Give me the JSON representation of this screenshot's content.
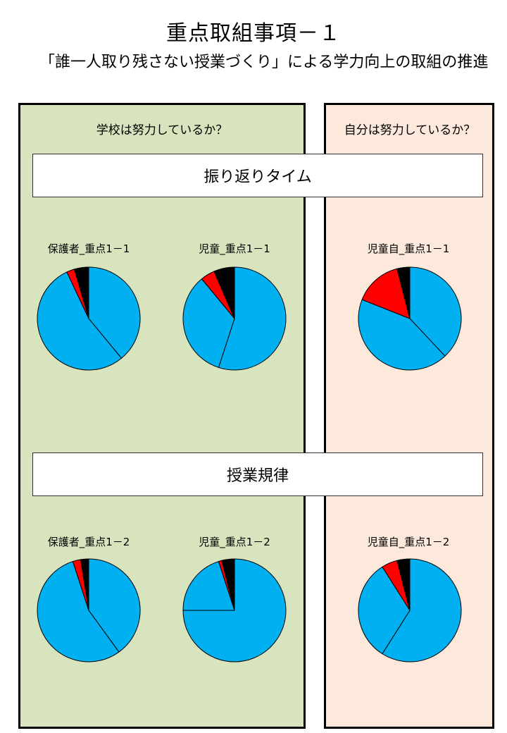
{
  "page": {
    "title": "重点取組事項－１",
    "subtitle": "「誰一人取り残さない授業づくり」による学力向上の取組の推進"
  },
  "panels": {
    "left_heading": "学校は努力しているか？",
    "right_heading": "自分は努力しているか？"
  },
  "bands": {
    "top": "振り返りタイム",
    "bottom": "授業規律"
  },
  "colors": {
    "blue": "#00b0f0",
    "red": "#ff0000",
    "black": "#000000"
  },
  "chart_data": [
    {
      "type": "pie",
      "title": "保護者_重点1－1",
      "values": [
        39,
        54,
        2.5,
        4.5
      ],
      "colors": [
        "#00b0f0",
        "#00b0f0",
        "#ff0000",
        "#000000"
      ]
    },
    {
      "type": "pie",
      "title": "児童_重点1－1",
      "values": [
        55,
        34,
        4.5,
        6.5
      ],
      "colors": [
        "#00b0f0",
        "#00b0f0",
        "#ff0000",
        "#000000"
      ]
    },
    {
      "type": "pie",
      "title": "児童自_重点1－1",
      "values": [
        38,
        43,
        15,
        4
      ],
      "colors": [
        "#00b0f0",
        "#00b0f0",
        "#ff0000",
        "#000000"
      ]
    },
    {
      "type": "pie",
      "title": "保護者_重点1－2",
      "values": [
        40,
        55,
        2.5,
        2.5
      ],
      "colors": [
        "#00b0f0",
        "#00b0f0",
        "#ff0000",
        "#000000"
      ]
    },
    {
      "type": "pie",
      "title": "児童_重点1－2",
      "values": [
        75,
        20,
        1,
        4
      ],
      "colors": [
        "#00b0f0",
        "#00b0f0",
        "#ff0000",
        "#000000"
      ]
    },
    {
      "type": "pie",
      "title": "児童自_重点1－2",
      "values": [
        59,
        32,
        5,
        4
      ],
      "colors": [
        "#00b0f0",
        "#00b0f0",
        "#ff0000",
        "#000000"
      ]
    }
  ]
}
